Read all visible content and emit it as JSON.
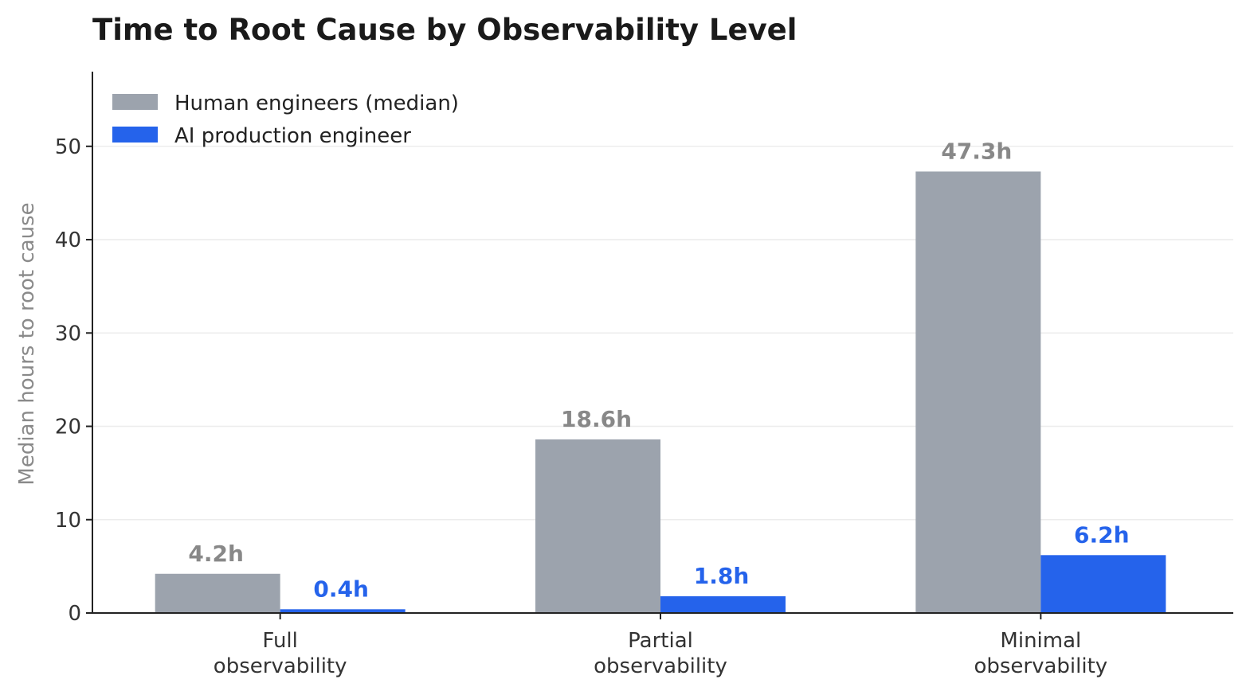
{
  "chart_data": {
    "type": "bar",
    "title": "Time to Root Cause by Observability Level",
    "xlabel": "",
    "ylabel": "Median hours to root cause",
    "categories": [
      [
        "Full",
        "observability"
      ],
      [
        "Partial",
        "observability"
      ],
      [
        "Minimal",
        "observability"
      ]
    ],
    "series": [
      {
        "name": "Human engineers (median)",
        "color": "#9ca3ad",
        "label_color": "#888888",
        "values": [
          4.2,
          18.6,
          47.3
        ],
        "labels": [
          "4.2h",
          "18.6h",
          "47.3h"
        ]
      },
      {
        "name": "AI production engineer",
        "color": "#2563eb",
        "label_color": "#2563eb",
        "values": [
          0.4,
          1.8,
          6.2
        ],
        "labels": [
          "0.4h",
          "1.8h",
          "6.2h"
        ]
      }
    ],
    "ylim": [
      0,
      58
    ],
    "yticks": [
      0,
      10,
      20,
      30,
      40,
      50
    ],
    "grid": true,
    "legend_position": "top-left"
  }
}
